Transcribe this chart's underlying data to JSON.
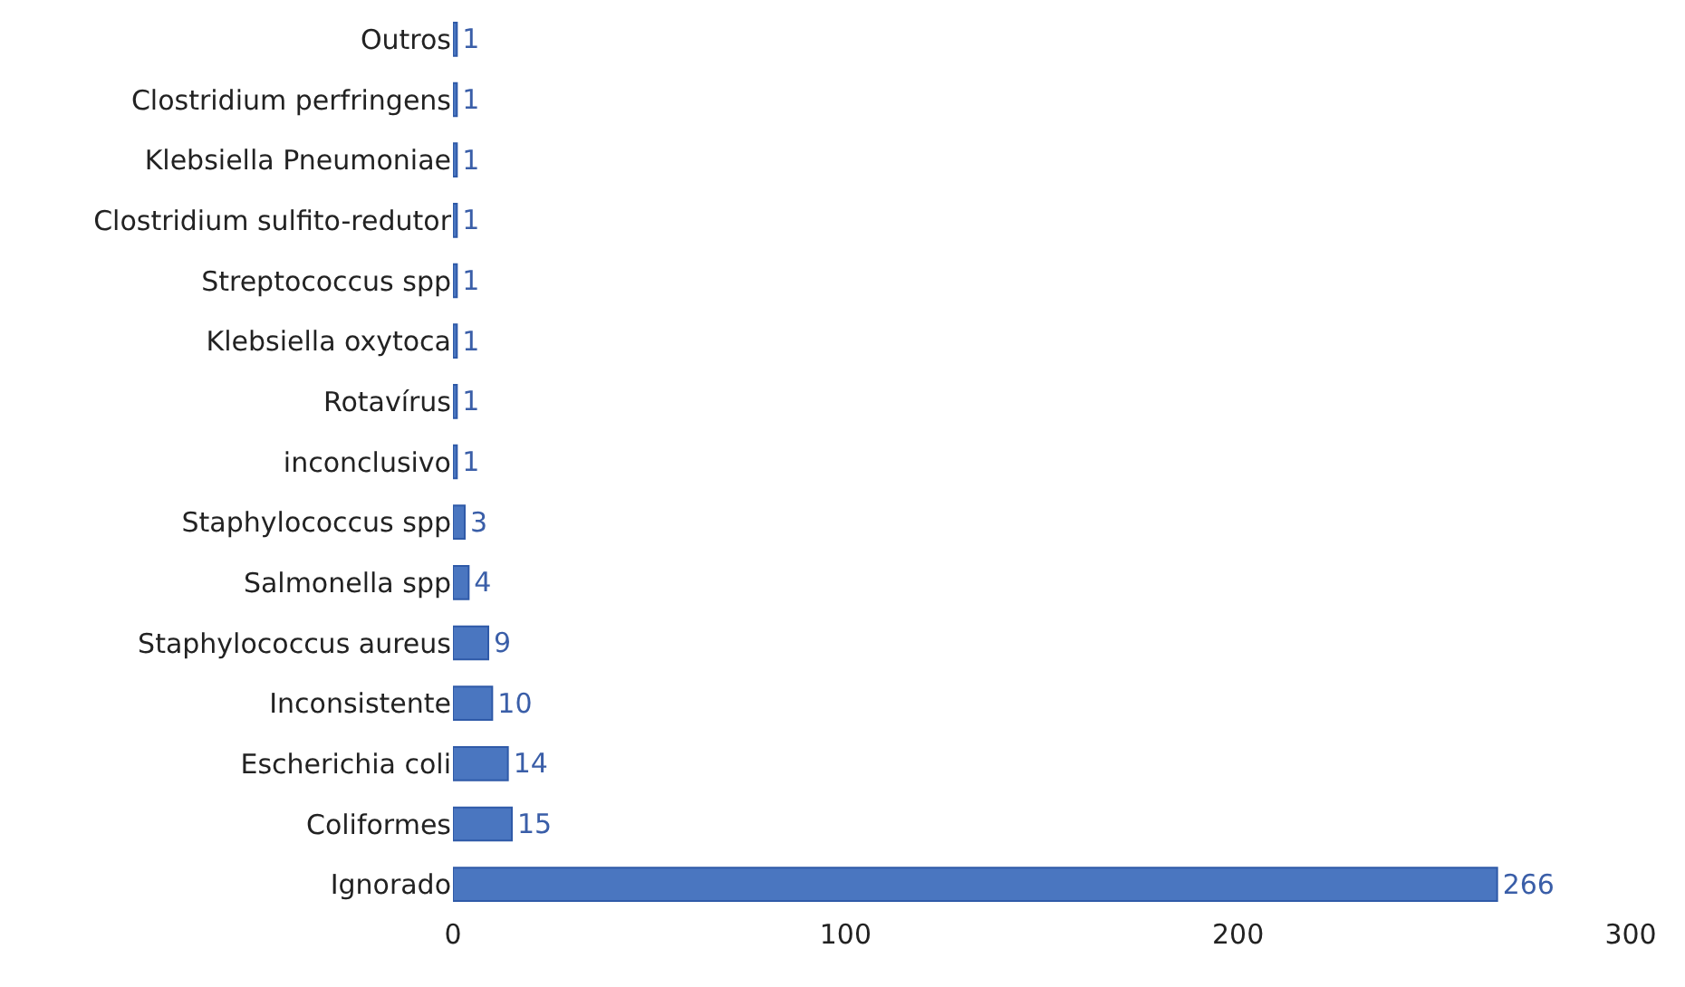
{
  "chart_data": {
    "type": "bar",
    "orientation": "horizontal",
    "categories": [
      "Outros",
      "Clostridium perfringens",
      "Klebsiella Pneumoniae",
      "Clostridium sulfito-redutor",
      "Streptococcus spp",
      "Klebsiella oxytoca",
      "Rotavírus",
      "inconclusivo",
      "Staphylococcus spp",
      "Salmonella spp",
      "Staphylococcus aureus",
      "Inconsistente",
      "Escherichia coli",
      "Coliformes",
      "Ignorado"
    ],
    "values": [
      1,
      1,
      1,
      1,
      1,
      1,
      1,
      1,
      3,
      4,
      9,
      10,
      14,
      15,
      266
    ],
    "color": "#4a76c0",
    "xlim": [
      0,
      300
    ],
    "xticks": [
      0,
      100,
      200,
      300
    ],
    "data_labels": true
  }
}
